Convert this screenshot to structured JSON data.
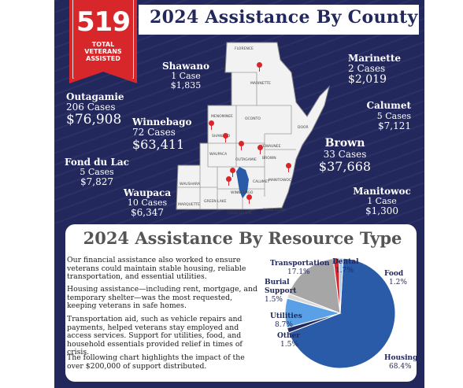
{
  "banner": {
    "number": "519",
    "line1": "TOTAL",
    "line2": "VETERANS",
    "line3": "ASSISTED"
  },
  "title": "2024 Assistance By County",
  "map_labels": [
    "FLORENCE",
    "MARINETTE",
    "MENOMINEE",
    "OCONTO",
    "DOOR",
    "SHAWANO",
    "KEWAUNEE",
    "BROWN",
    "WAUPACA",
    "OUTAGAMIE",
    "CALUMET",
    "MANITOWOC",
    "WAUSHARA",
    "WINNEBAGO",
    "MARQUETTE",
    "GREEN LAKE",
    "FOND DU LAC",
    "SHEBOYGAN"
  ],
  "counties": {
    "shawano": {
      "name": "Shawano",
      "cases": "1 Case",
      "amount": "$1,835"
    },
    "marinette": {
      "name": "Marinette",
      "cases": "2 Cases",
      "amount": "$2,019"
    },
    "outagamie": {
      "name": "Outagamie",
      "cases": "206 Cases",
      "amount": "$76,908"
    },
    "calumet": {
      "name": "Calumet",
      "cases": "5 Cases",
      "amount": "$7,121"
    },
    "winnebago": {
      "name": "Winnebago",
      "cases": "72 Cases",
      "amount": "$63,411"
    },
    "brown": {
      "name": "Brown",
      "cases": "33 Cases",
      "amount": "$37,668"
    },
    "fond_du_lac": {
      "name": "Fond du Lac",
      "cases": "5 Cases",
      "amount": "$7,827"
    },
    "waupaca": {
      "name": "Waupaca",
      "cases": "10 Cases",
      "amount": "$6,347"
    },
    "manitowoc": {
      "name": "Manitowoc",
      "cases": "1 Case",
      "amount": "$1,300"
    }
  },
  "resource": {
    "title": "2024 Assistance By Resource Type",
    "paragraphs": [
      "Our financial assistance also worked to ensure veterans could maintain stable housing, reliable transportation, and essential utilities.",
      "Housing assistance—including rent, mortgage, and temporary shelter—was the most requested, keeping veterans in safe homes.",
      "Transportation aid, such as vehicle repairs and payments, helped veterans stay employed and access services. Support for utilities, food, and household essentials provided relief in times of crisis.",
      "The following chart highlights the impact of the over $200,000 of support distributed."
    ]
  },
  "chart_data": {
    "type": "pie",
    "slices": [
      {
        "name": "Housing",
        "value": 68.4,
        "label": "68.4%",
        "color": "#2a5ba8"
      },
      {
        "name": "Other",
        "value": 1.5,
        "label": "1.5%",
        "color": "#23285c"
      },
      {
        "name": "Utilities",
        "value": 8.7,
        "label": "8.7%",
        "color": "#5aa0e6"
      },
      {
        "name": "Burial Support",
        "value": 1.5,
        "label": "1.5%",
        "color": "#d9d9d9"
      },
      {
        "name": "Transportation",
        "value": 17.1,
        "label": "17.1%",
        "color": "#a6a6a6"
      },
      {
        "name": "Dental",
        "value": 1.7,
        "label": "1.7%",
        "color": "#d8272b"
      },
      {
        "name": "Food",
        "value": 1.2,
        "label": "1.2%",
        "color": "#9cc8ee"
      }
    ]
  },
  "colors": {
    "navy": "#23285c",
    "red": "#d8272b",
    "accent_blue": "#2a5ba8"
  }
}
